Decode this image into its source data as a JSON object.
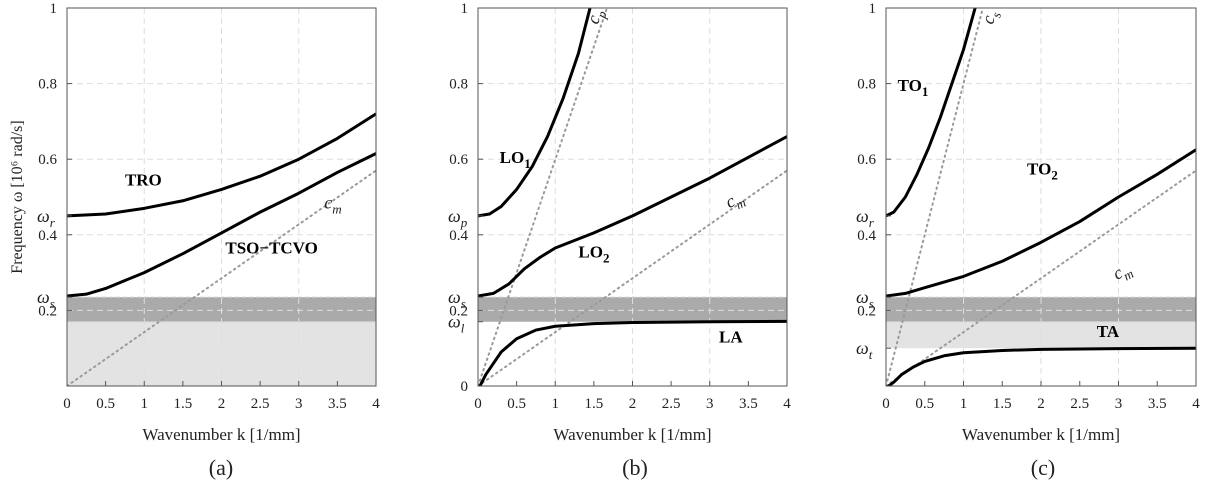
{
  "panels": [
    {
      "caption": "(a)",
      "xlabel": "Wavenumber k [1/mm]",
      "ylabel": "Frequency ω [10⁶ rad/s]",
      "xlim": [
        0,
        4
      ],
      "ylim": [
        0,
        1
      ],
      "xticks": [
        "0",
        "0.5",
        "1",
        "1.5",
        "2",
        "2.5",
        "3",
        "3.5",
        "4"
      ],
      "yticks": [
        {
          "v": 0.2,
          "t": "0.2"
        },
        {
          "v": 0.4,
          "t": "0.4"
        },
        {
          "v": 0.6,
          "t": "0.6"
        },
        {
          "v": 0.8,
          "t": "0.8"
        },
        {
          "v": 1.0,
          "t": "1"
        }
      ],
      "refticks": [
        {
          "v": 0.45,
          "t": "ω",
          "sub": "r"
        },
        {
          "v": 0.235,
          "t": "ω",
          "sub": "s"
        }
      ],
      "bands": [
        {
          "from": 0.17,
          "to": 0.235,
          "color": "#aaaaaa"
        },
        {
          "from": 0.0,
          "to": 0.17,
          "color": "#e3e3e3"
        }
      ],
      "lines": [
        {
          "name": "TRO",
          "pts": [
            [
              0,
              0.45
            ],
            [
              0.5,
              0.455
            ],
            [
              1,
              0.47
            ],
            [
              1.5,
              0.49
            ],
            [
              2,
              0.52
            ],
            [
              2.5,
              0.555
            ],
            [
              3,
              0.6
            ],
            [
              3.5,
              0.655
            ],
            [
              4,
              0.72
            ]
          ]
        },
        {
          "name": "TSO−TCVO",
          "pts": [
            [
              0,
              0.238
            ],
            [
              0.25,
              0.243
            ],
            [
              0.5,
              0.258
            ],
            [
              1,
              0.3
            ],
            [
              1.5,
              0.35
            ],
            [
              2,
              0.405
            ],
            [
              2.5,
              0.46
            ],
            [
              3,
              0.51
            ],
            [
              3.5,
              0.565
            ],
            [
              4,
              0.615
            ]
          ]
        }
      ],
      "dotted": [
        {
          "name": "c",
          "sub": "m",
          "pts": [
            [
              0,
              0
            ],
            [
              4,
              0.57
            ]
          ]
        }
      ],
      "labels": [
        {
          "text": "TRO",
          "x": 0.75,
          "y": 0.53
        },
        {
          "text": "TSO−TCVO",
          "x": 2.05,
          "y": 0.35
        },
        {
          "text": "c",
          "sub": "m",
          "x": 3.33,
          "y": 0.47,
          "italic": true
        }
      ]
    },
    {
      "caption": "(b)",
      "xlabel": "Wavenumber k [1/mm]",
      "xlim": [
        0,
        4
      ],
      "ylim": [
        0,
        1
      ],
      "xticks": [
        "0",
        "0.5",
        "1",
        "1.5",
        "2",
        "2.5",
        "3",
        "3.5",
        "4"
      ],
      "yticks": [
        {
          "v": 0,
          "t": "0"
        },
        {
          "v": 0.2,
          "t": "0.2"
        },
        {
          "v": 0.4,
          "t": "0.4"
        },
        {
          "v": 0.6,
          "t": "0.6"
        },
        {
          "v": 0.8,
          "t": "0.8"
        },
        {
          "v": 1.0,
          "t": "1"
        }
      ],
      "refticks": [
        {
          "v": 0.45,
          "t": "ω",
          "sub": "p"
        },
        {
          "v": 0.235,
          "t": "ω",
          "sub": "s"
        },
        {
          "v": 0.17,
          "t": "ω",
          "sub": "l"
        }
      ],
      "bands": [
        {
          "from": 0.17,
          "to": 0.235,
          "color": "#aaaaaa"
        }
      ],
      "lines": [
        {
          "name": "LO1",
          "pts": [
            [
              0,
              0.45
            ],
            [
              0.15,
              0.455
            ],
            [
              0.3,
              0.475
            ],
            [
              0.5,
              0.52
            ],
            [
              0.7,
              0.58
            ],
            [
              0.9,
              0.66
            ],
            [
              1.1,
              0.76
            ],
            [
              1.3,
              0.88
            ],
            [
              1.45,
              1.0
            ]
          ]
        },
        {
          "name": "LO2",
          "pts": [
            [
              0,
              0.238
            ],
            [
              0.2,
              0.245
            ],
            [
              0.4,
              0.27
            ],
            [
              0.6,
              0.31
            ],
            [
              0.8,
              0.34
            ],
            [
              1,
              0.365
            ],
            [
              1.5,
              0.405
            ],
            [
              2,
              0.45
            ],
            [
              2.5,
              0.5
            ],
            [
              3,
              0.55
            ],
            [
              3.5,
              0.605
            ],
            [
              4,
              0.66
            ]
          ]
        },
        {
          "name": "LA",
          "pts": [
            [
              0,
              -0.01
            ],
            [
              0.1,
              0.03
            ],
            [
              0.2,
              0.06
            ],
            [
              0.3,
              0.09
            ],
            [
              0.5,
              0.125
            ],
            [
              0.75,
              0.148
            ],
            [
              1,
              0.158
            ],
            [
              1.5,
              0.165
            ],
            [
              2,
              0.168
            ],
            [
              3,
              0.17
            ],
            [
              4,
              0.171
            ]
          ]
        }
      ],
      "dotted": [
        {
          "name": "c",
          "sub": "p",
          "pts": [
            [
              0,
              0
            ],
            [
              1.67,
              1.0
            ]
          ]
        },
        {
          "name": "c",
          "sub": "m",
          "pts": [
            [
              0,
              0
            ],
            [
              4,
              0.57
            ]
          ]
        }
      ],
      "labels": [
        {
          "text": "LO",
          "sub": "1",
          "x": 0.28,
          "y": 0.59
        },
        {
          "text": "LO",
          "sub": "2",
          "x": 1.3,
          "y": 0.34
        },
        {
          "text": "LA",
          "x": 3.12,
          "y": 0.115
        },
        {
          "text": "c",
          "sub": "p",
          "x": 1.55,
          "y": 0.955,
          "italic": true,
          "rotate": -72
        },
        {
          "text": "c",
          "sub": "m",
          "x": 3.25,
          "y": 0.47,
          "italic": true,
          "rotate": -25
        }
      ]
    },
    {
      "caption": "(c)",
      "xlabel": "Wavenumber k [1/mm]",
      "xlim": [
        0,
        4
      ],
      "ylim": [
        0,
        1
      ],
      "xticks": [
        "0",
        "0.5",
        "1",
        "1.5",
        "2",
        "2.5",
        "3",
        "3.5",
        "4"
      ],
      "yticks": [
        {
          "v": 0.2,
          "t": "0.2"
        },
        {
          "v": 0.4,
          "t": "0.4"
        },
        {
          "v": 0.6,
          "t": "0.6"
        },
        {
          "v": 0.8,
          "t": "0.8"
        },
        {
          "v": 1.0,
          "t": "1"
        }
      ],
      "refticks": [
        {
          "v": 0.45,
          "t": "ω",
          "sub": "r"
        },
        {
          "v": 0.235,
          "t": "ω",
          "sub": "s"
        },
        {
          "v": 0.1,
          "t": "ω",
          "sub": "t"
        }
      ],
      "bands": [
        {
          "from": 0.17,
          "to": 0.235,
          "color": "#aaaaaa"
        },
        {
          "from": 0.1,
          "to": 0.17,
          "color": "#e3e3e3"
        }
      ],
      "lines": [
        {
          "name": "TO1",
          "pts": [
            [
              0,
              0.45
            ],
            [
              0.1,
              0.46
            ],
            [
              0.25,
              0.5
            ],
            [
              0.4,
              0.56
            ],
            [
              0.55,
              0.63
            ],
            [
              0.7,
              0.71
            ],
            [
              0.85,
              0.8
            ],
            [
              1.0,
              0.89
            ],
            [
              1.15,
              1.0
            ]
          ]
        },
        {
          "name": "TO2",
          "pts": [
            [
              0,
              0.238
            ],
            [
              0.25,
              0.245
            ],
            [
              0.5,
              0.26
            ],
            [
              1,
              0.29
            ],
            [
              1.5,
              0.33
            ],
            [
              2,
              0.38
            ],
            [
              2.5,
              0.435
            ],
            [
              3,
              0.5
            ],
            [
              3.5,
              0.56
            ],
            [
              4,
              0.625
            ]
          ]
        },
        {
          "name": "TA",
          "pts": [
            [
              0,
              -0.005
            ],
            [
              0.1,
              0.01
            ],
            [
              0.2,
              0.03
            ],
            [
              0.35,
              0.05
            ],
            [
              0.5,
              0.065
            ],
            [
              0.75,
              0.08
            ],
            [
              1,
              0.088
            ],
            [
              1.5,
              0.094
            ],
            [
              2,
              0.097
            ],
            [
              3,
              0.099
            ],
            [
              4,
              0.1
            ]
          ]
        }
      ],
      "dotted": [
        {
          "name": "c",
          "sub": "s",
          "pts": [
            [
              0,
              0
            ],
            [
              1.25,
              1.0
            ]
          ]
        },
        {
          "name": "c",
          "sub": "m",
          "pts": [
            [
              0,
              0
            ],
            [
              4,
              0.57
            ]
          ]
        }
      ],
      "labels": [
        {
          "text": "TO",
          "sub": "1",
          "x": 0.15,
          "y": 0.78
        },
        {
          "text": "TO",
          "sub": "2",
          "x": 1.82,
          "y": 0.56
        },
        {
          "text": "TA",
          "x": 2.72,
          "y": 0.13
        },
        {
          "text": "c",
          "sub": "s",
          "x": 1.38,
          "y": 0.955,
          "italic": true,
          "rotate": -75
        },
        {
          "text": "c",
          "sub": "m",
          "x": 2.98,
          "y": 0.28,
          "italic": true,
          "rotate": -28
        }
      ]
    }
  ],
  "chart_data": [
    {
      "type": "line",
      "title": "(a)",
      "xlabel": "Wavenumber k [1/mm]",
      "ylabel": "Frequency ω [10⁶ rad/s]",
      "xlim": [
        0,
        4
      ],
      "ylim": [
        0,
        1
      ],
      "grid": true,
      "series": [
        {
          "name": "TRO",
          "x": [
            0,
            0.5,
            1,
            1.5,
            2,
            2.5,
            3,
            3.5,
            4
          ],
          "y": [
            0.45,
            0.455,
            0.47,
            0.49,
            0.52,
            0.555,
            0.6,
            0.655,
            0.72
          ]
        },
        {
          "name": "TSO−TCVO",
          "x": [
            0,
            0.5,
            1,
            1.5,
            2,
            2.5,
            3,
            3.5,
            4
          ],
          "y": [
            0.238,
            0.258,
            0.3,
            0.35,
            0.405,
            0.46,
            0.51,
            0.565,
            0.615
          ]
        },
        {
          "name": "cm",
          "x": [
            0,
            4
          ],
          "y": [
            0,
            0.57
          ]
        }
      ],
      "annotations": [
        "ωr ≈ 0.45",
        "ωs ≈ 0.235",
        "band 0.17–0.235 (dark)",
        "band 0–0.17 (light)"
      ]
    },
    {
      "type": "line",
      "title": "(b)",
      "xlabel": "Wavenumber k [1/mm]",
      "xlim": [
        0,
        4
      ],
      "ylim": [
        0,
        1
      ],
      "grid": true,
      "series": [
        {
          "name": "LO1",
          "x": [
            0,
            0.3,
            0.5,
            0.7,
            0.9,
            1.1,
            1.3,
            1.45
          ],
          "y": [
            0.45,
            0.475,
            0.52,
            0.58,
            0.66,
            0.76,
            0.88,
            1.0
          ]
        },
        {
          "name": "LO2",
          "x": [
            0,
            0.5,
            1,
            1.5,
            2,
            2.5,
            3,
            3.5,
            4
          ],
          "y": [
            0.238,
            0.29,
            0.365,
            0.405,
            0.45,
            0.5,
            0.55,
            0.605,
            0.66
          ]
        },
        {
          "name": "LA",
          "x": [
            0,
            0.5,
            1,
            1.5,
            2,
            3,
            4
          ],
          "y": [
            0,
            0.125,
            0.158,
            0.165,
            0.168,
            0.17,
            0.171
          ]
        },
        {
          "name": "cp",
          "x": [
            0,
            1.67
          ],
          "y": [
            0,
            1.0
          ]
        },
        {
          "name": "cm",
          "x": [
            0,
            4
          ],
          "y": [
            0,
            0.57
          ]
        }
      ],
      "annotations": [
        "ωp ≈ 0.45",
        "ωs ≈ 0.235",
        "ωl ≈ 0.17",
        "band 0.17–0.235"
      ]
    },
    {
      "type": "line",
      "title": "(c)",
      "xlabel": "Wavenumber k [1/mm]",
      "xlim": [
        0,
        4
      ],
      "ylim": [
        0,
        1
      ],
      "grid": true,
      "series": [
        {
          "name": "TO1",
          "x": [
            0,
            0.25,
            0.55,
            0.85,
            1.15
          ],
          "y": [
            0.45,
            0.5,
            0.63,
            0.8,
            1.0
          ]
        },
        {
          "name": "TO2",
          "x": [
            0,
            0.5,
            1,
            1.5,
            2,
            2.5,
            3,
            3.5,
            4
          ],
          "y": [
            0.238,
            0.26,
            0.29,
            0.33,
            0.38,
            0.435,
            0.5,
            0.56,
            0.625
          ]
        },
        {
          "name": "TA",
          "x": [
            0,
            0.5,
            1,
            2,
            3,
            4
          ],
          "y": [
            0,
            0.065,
            0.088,
            0.097,
            0.099,
            0.1
          ]
        },
        {
          "name": "cs",
          "x": [
            0,
            1.25
          ],
          "y": [
            0,
            1.0
          ]
        },
        {
          "name": "cm",
          "x": [
            0,
            4
          ],
          "y": [
            0,
            0.57
          ]
        }
      ],
      "annotations": [
        "ωr ≈ 0.45",
        "ωs ≈ 0.235",
        "ωt ≈ 0.1",
        "band 0.17–0.235 (dark)",
        "band 0.1–0.17 (light)"
      ]
    }
  ]
}
